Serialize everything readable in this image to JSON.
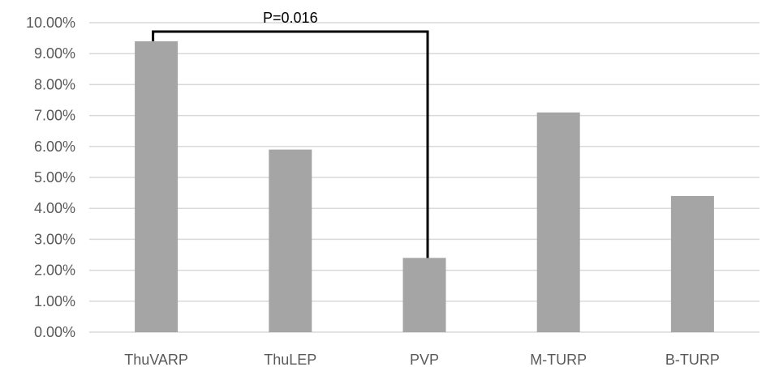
{
  "chart_data": {
    "type": "bar",
    "categories": [
      "ThuVARP",
      "ThuLEP",
      "PVP",
      "M-TURP",
      "B-TURP"
    ],
    "values": [
      9.4,
      5.9,
      2.4,
      7.1,
      4.4
    ],
    "value_unit": "%",
    "ylim": [
      0,
      10
    ],
    "ytick_step": 1,
    "ytick_labels": [
      "0.00%",
      "1.00%",
      "2.00%",
      "3.00%",
      "4.00%",
      "5.00%",
      "6.00%",
      "7.00%",
      "8.00%",
      "9.00%",
      "10.00%"
    ],
    "grid": true,
    "legend": "none",
    "colors": {
      "bar": "#a5a5a5",
      "grid": "#d9d9d9",
      "bracket": "#000000",
      "text": "#595959"
    },
    "annotations": [
      {
        "type": "significance-bracket",
        "from": "ThuVARP",
        "to": "PVP",
        "text": "P=0.016"
      }
    ]
  }
}
